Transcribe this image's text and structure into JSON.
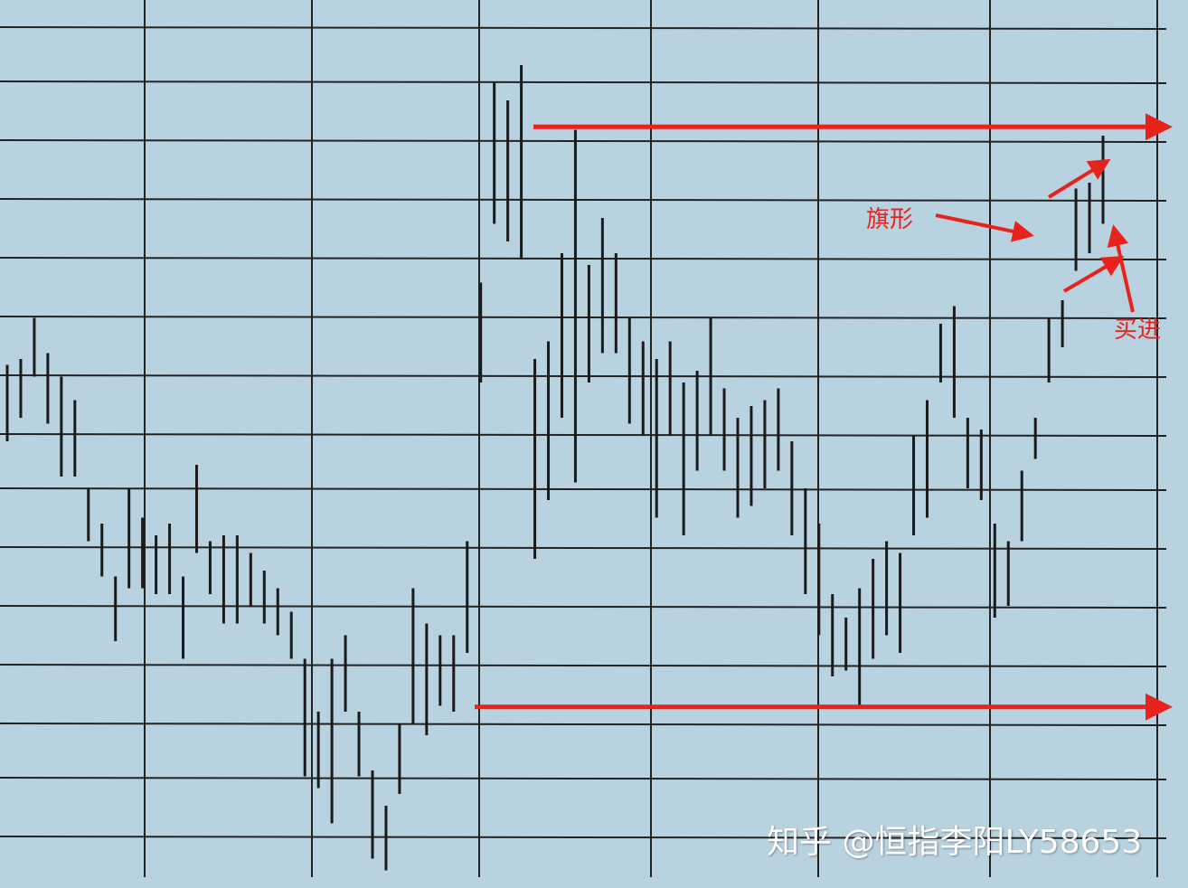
{
  "chart_data": {
    "type": "ohlc-bar",
    "title": "",
    "xlabel": "",
    "ylabel": "",
    "grid": true,
    "ylim": [
      0,
      15
    ],
    "bars_high_low": [
      [
        8.9,
        7.6
      ],
      [
        9.0,
        8.0
      ],
      [
        9.7,
        8.7
      ],
      [
        9.1,
        7.9
      ],
      [
        8.7,
        7.0
      ],
      [
        8.3,
        7.0
      ],
      [
        6.8,
        5.9
      ],
      [
        6.2,
        5.3
      ],
      [
        5.3,
        4.2
      ],
      [
        6.8,
        5.1
      ],
      [
        6.3,
        5.1
      ],
      [
        6.0,
        5.0
      ],
      [
        6.2,
        5.0
      ],
      [
        5.3,
        3.9
      ],
      [
        7.2,
        5.7
      ],
      [
        5.9,
        5.0
      ],
      [
        6.0,
        4.5
      ],
      [
        6.0,
        4.5
      ],
      [
        5.7,
        4.8
      ],
      [
        5.4,
        4.5
      ],
      [
        5.1,
        4.3
      ],
      [
        4.7,
        3.9
      ],
      [
        3.9,
        1.9
      ],
      [
        3.0,
        1.7
      ],
      [
        3.9,
        1.1
      ],
      [
        4.3,
        3.0
      ],
      [
        3.0,
        1.9
      ],
      [
        2.0,
        0.5
      ],
      [
        1.4,
        0.3
      ],
      [
        2.8,
        1.6
      ],
      [
        5.1,
        2.8
      ],
      [
        4.5,
        2.6
      ],
      [
        4.3,
        3.1
      ],
      [
        4.3,
        3.0
      ],
      [
        5.9,
        4.0
      ],
      [
        10.3,
        8.6
      ],
      [
        13.7,
        11.3
      ],
      [
        13.4,
        11.0
      ],
      [
        14.0,
        10.7
      ],
      [
        9.0,
        5.6
      ],
      [
        9.3,
        6.6
      ],
      [
        10.8,
        8.0
      ],
      [
        12.9,
        6.9
      ],
      [
        10.6,
        8.6
      ],
      [
        11.4,
        9.1
      ],
      [
        10.8,
        9.1
      ],
      [
        9.7,
        7.9
      ],
      [
        9.3,
        7.7
      ],
      [
        9.0,
        6.3
      ],
      [
        9.3,
        7.7
      ],
      [
        8.6,
        6.0
      ],
      [
        8.8,
        7.1
      ],
      [
        9.7,
        7.7
      ],
      [
        8.5,
        7.1
      ],
      [
        8.0,
        6.3
      ],
      [
        8.2,
        6.5
      ],
      [
        8.3,
        6.8
      ],
      [
        8.5,
        7.1
      ],
      [
        7.6,
        6.0
      ],
      [
        6.8,
        5.0
      ],
      [
        6.2,
        4.3
      ],
      [
        5.0,
        3.6
      ],
      [
        4.6,
        3.7
      ],
      [
        5.1,
        3.1
      ],
      [
        5.6,
        3.9
      ],
      [
        5.9,
        4.3
      ],
      [
        5.7,
        4.0
      ],
      [
        7.7,
        6.0
      ],
      [
        8.3,
        6.3
      ],
      [
        9.6,
        8.6
      ],
      [
        9.9,
        8.0
      ],
      [
        8.0,
        6.8
      ],
      [
        7.8,
        6.6
      ],
      [
        6.2,
        4.6
      ],
      [
        5.9,
        4.8
      ],
      [
        7.1,
        5.9
      ],
      [
        8.0,
        7.3
      ],
      [
        9.7,
        8.6
      ],
      [
        10.0,
        9.2
      ],
      [
        11.9,
        10.5
      ],
      [
        12.0,
        10.8
      ],
      [
        12.8,
        11.3
      ]
    ],
    "resistance_level": 12.95,
    "support_level": 3.08,
    "annotations": {
      "flag": "旗形",
      "buy": "买进"
    },
    "colors": {
      "background": "#b9d2e0",
      "bars": "#1a1a1a",
      "grid": "#222222",
      "annotation": "#e8231e"
    }
  },
  "watermark": "知乎 @恒指李阳LY58653"
}
